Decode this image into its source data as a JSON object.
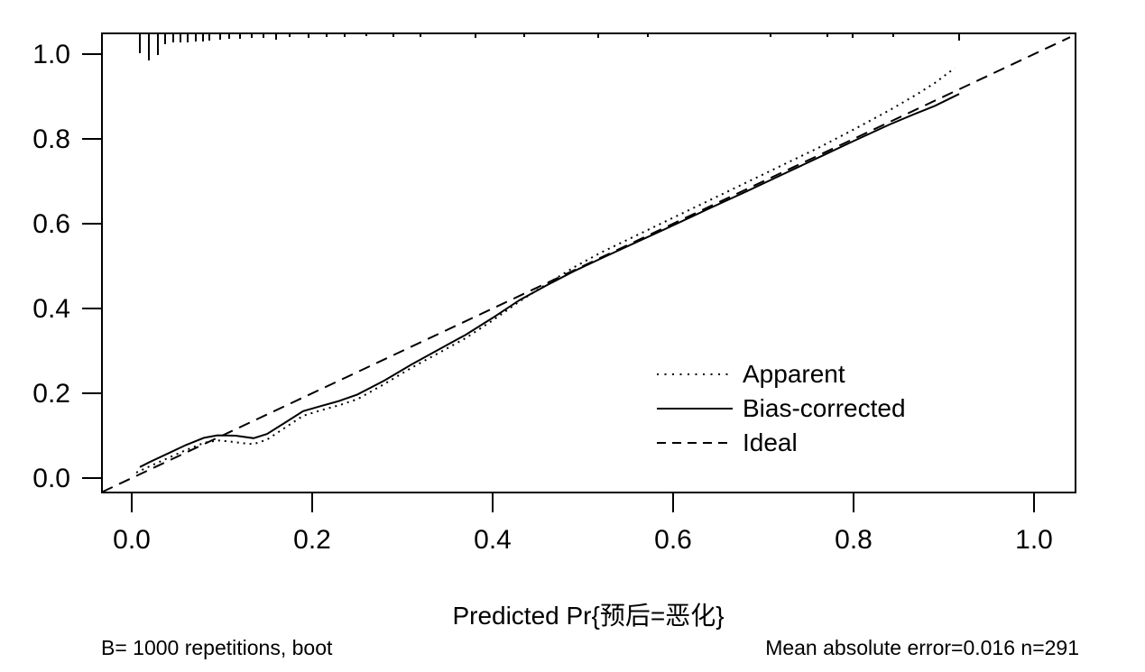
{
  "figure": {
    "background": "#ffffff",
    "foreground": "#000000"
  },
  "chart_data": {
    "type": "line",
    "title": "",
    "xlabel": "Predicted Pr{预后=恶化}",
    "ylabel": "",
    "xlim": [
      -0.033,
      1.046
    ],
    "ylim": [
      -0.034,
      1.049
    ],
    "grid": false,
    "xticks": {
      "values": [
        0.0,
        0.2,
        0.4,
        0.6,
        0.8,
        1.0
      ],
      "labels": [
        "0.0",
        "0.2",
        "0.4",
        "0.6",
        "0.8",
        "1.0"
      ]
    },
    "yticks": {
      "values": [
        0.0,
        0.2,
        0.4,
        0.6,
        0.8,
        1.0
      ],
      "labels": [
        "0.0",
        "0.2",
        "0.4",
        "0.6",
        "0.8",
        "1.0"
      ]
    },
    "legend": {
      "position": "right-center",
      "entries": [
        {
          "label": "Apparent",
          "style": "dotted"
        },
        {
          "label": "Bias-corrected",
          "style": "solid"
        },
        {
          "label": "Ideal",
          "style": "dashed"
        }
      ]
    },
    "series": [
      {
        "name": "Apparent",
        "style": "dotted",
        "points": [
          [
            0.005,
            0.013
          ],
          [
            0.02,
            0.028
          ],
          [
            0.04,
            0.047
          ],
          [
            0.06,
            0.066
          ],
          [
            0.08,
            0.083
          ],
          [
            0.095,
            0.089
          ],
          [
            0.11,
            0.086
          ],
          [
            0.125,
            0.082
          ],
          [
            0.135,
            0.08
          ],
          [
            0.15,
            0.091
          ],
          [
            0.17,
            0.119
          ],
          [
            0.19,
            0.147
          ],
          [
            0.21,
            0.16
          ],
          [
            0.23,
            0.172
          ],
          [
            0.25,
            0.186
          ],
          [
            0.28,
            0.222
          ],
          [
            0.31,
            0.26
          ],
          [
            0.34,
            0.295
          ],
          [
            0.37,
            0.33
          ],
          [
            0.4,
            0.372
          ],
          [
            0.43,
            0.417
          ],
          [
            0.46,
            0.458
          ],
          [
            0.49,
            0.497
          ],
          [
            0.52,
            0.532
          ],
          [
            0.56,
            0.573
          ],
          [
            0.6,
            0.614
          ],
          [
            0.64,
            0.655
          ],
          [
            0.68,
            0.696
          ],
          [
            0.72,
            0.737
          ],
          [
            0.76,
            0.778
          ],
          [
            0.8,
            0.822
          ],
          [
            0.84,
            0.868
          ],
          [
            0.87,
            0.905
          ],
          [
            0.89,
            0.932
          ],
          [
            0.912,
            0.967
          ]
        ]
      },
      {
        "name": "Bias-corrected",
        "style": "solid",
        "points": [
          [
            0.009,
            0.026
          ],
          [
            0.02,
            0.038
          ],
          [
            0.04,
            0.058
          ],
          [
            0.06,
            0.078
          ],
          [
            0.08,
            0.095
          ],
          [
            0.095,
            0.101
          ],
          [
            0.115,
            0.1
          ],
          [
            0.135,
            0.094
          ],
          [
            0.15,
            0.104
          ],
          [
            0.17,
            0.131
          ],
          [
            0.19,
            0.158
          ],
          [
            0.21,
            0.17
          ],
          [
            0.23,
            0.182
          ],
          [
            0.25,
            0.197
          ],
          [
            0.28,
            0.23
          ],
          [
            0.31,
            0.268
          ],
          [
            0.34,
            0.303
          ],
          [
            0.37,
            0.338
          ],
          [
            0.4,
            0.378
          ],
          [
            0.43,
            0.42
          ],
          [
            0.46,
            0.455
          ],
          [
            0.49,
            0.488
          ],
          [
            0.52,
            0.518
          ],
          [
            0.56,
            0.557
          ],
          [
            0.6,
            0.596
          ],
          [
            0.64,
            0.636
          ],
          [
            0.68,
            0.675
          ],
          [
            0.72,
            0.715
          ],
          [
            0.76,
            0.755
          ],
          [
            0.8,
            0.795
          ],
          [
            0.84,
            0.834
          ],
          [
            0.87,
            0.861
          ],
          [
            0.89,
            0.878
          ],
          [
            0.917,
            0.906
          ]
        ]
      },
      {
        "name": "Ideal",
        "style": "dashed",
        "points": [
          [
            -0.033,
            -0.033
          ],
          [
            1.04,
            1.04
          ]
        ]
      }
    ],
    "rug": {
      "description": "distribution of predicted probabilities along top axis",
      "ticks": [
        [
          0.009,
          22
        ],
        [
          0.019,
          30
        ],
        [
          0.029,
          24
        ],
        [
          0.037,
          12
        ],
        [
          0.046,
          10
        ],
        [
          0.054,
          10
        ],
        [
          0.062,
          10
        ],
        [
          0.071,
          9
        ],
        [
          0.079,
          9
        ],
        [
          0.086,
          8
        ],
        [
          0.098,
          7
        ],
        [
          0.108,
          6
        ],
        [
          0.12,
          6
        ],
        [
          0.133,
          5
        ],
        [
          0.146,
          5
        ],
        [
          0.16,
          7
        ],
        [
          0.175,
          4
        ],
        [
          0.196,
          5
        ],
        [
          0.216,
          4
        ],
        [
          0.236,
          4
        ],
        [
          0.26,
          3
        ],
        [
          0.29,
          4
        ],
        [
          0.32,
          4
        ],
        [
          0.381,
          5
        ],
        [
          0.435,
          4
        ],
        [
          0.517,
          5
        ],
        [
          0.572,
          4
        ],
        [
          0.708,
          4
        ],
        [
          0.771,
          4
        ],
        [
          0.799,
          5
        ],
        [
          0.844,
          4
        ],
        [
          0.917,
          8
        ]
      ]
    },
    "footnotes": {
      "left": "B= 1000 repetitions, boot",
      "right": "Mean absolute error=0.016 n=291"
    }
  }
}
